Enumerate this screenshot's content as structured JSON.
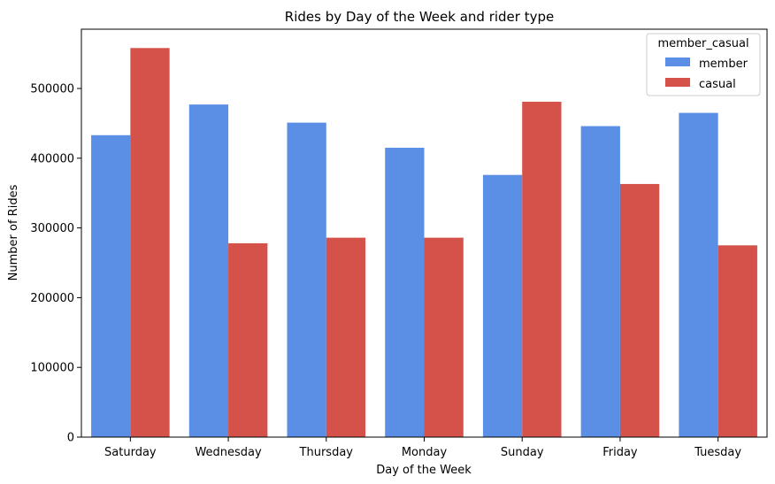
{
  "chart_data": {
    "type": "bar",
    "title": "Rides by Day of the Week and rider type",
    "xlabel": "Day of the Week",
    "ylabel": "Number of Rides",
    "categories": [
      "Saturday",
      "Wednesday",
      "Thursday",
      "Monday",
      "Sunday",
      "Friday",
      "Tuesday"
    ],
    "series": [
      {
        "name": "member",
        "color": "#5b8fe6",
        "values": [
          433000,
          477000,
          451000,
          415000,
          376000,
          446000,
          465000
        ]
      },
      {
        "name": "casual",
        "color": "#d4524a",
        "values": [
          558000,
          278000,
          286000,
          286000,
          481000,
          363000,
          275000
        ]
      }
    ],
    "ylim": [
      0,
      585000
    ],
    "yticks": [
      0,
      100000,
      200000,
      300000,
      400000,
      500000
    ],
    "ytick_labels": [
      "0",
      "100000",
      "200000",
      "300000",
      "400000",
      "500000"
    ],
    "grid": false,
    "legend": {
      "title": "member_casual",
      "placement": "top-right"
    }
  }
}
